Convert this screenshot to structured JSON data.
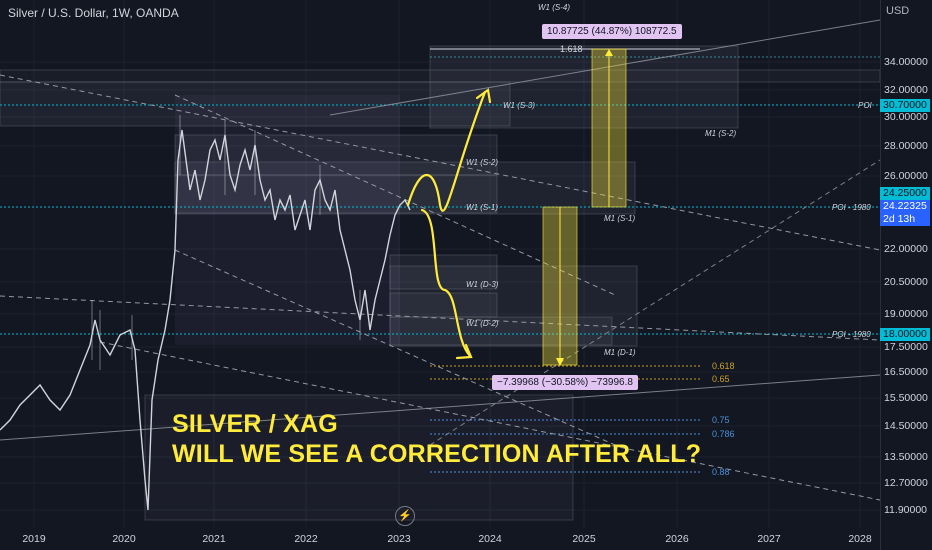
{
  "header": {
    "title": "Silver / U.S. Dollar, 1W, OANDA"
  },
  "axis": {
    "currency": "USD",
    "y_labels": [
      "34.00000",
      "32.00000",
      "30.00000",
      "28.00000",
      "26.00000",
      "22.00000",
      "20.50000",
      "19.00000",
      "17.50000",
      "16.50000",
      "15.50000",
      "14.50000",
      "13.50000",
      "12.70000",
      "11.90000"
    ],
    "x_labels": [
      "2019",
      "2020",
      "2021",
      "2022",
      "2023",
      "2024",
      "2025",
      "2026",
      "2027",
      "2028"
    ]
  },
  "price_tags": {
    "poi_upper": "30.70000",
    "poi_mid": "24.25000",
    "current": "24.22325",
    "countdown": "2d 13h",
    "poi_lower": "18.00000"
  },
  "poi_labels": {
    "upper": "POI",
    "mid": "POI - 1980",
    "lower": "POI - 1980"
  },
  "zones": {
    "w1_s4": "W1 (S-4)",
    "w1_s3": "W1 (S-3)",
    "w1_s2": "W1 (S-2)",
    "w1_s1": "W1 (S-1)",
    "m1_s2": "M1 (S-2)",
    "m1_s1": "M1 (S-1)",
    "w1_d3": "W1 (D-3)",
    "w1_d2": "W1 (D-2)",
    "m1_d1": "M1 (D-1)"
  },
  "fib": {
    "f1618": "1.618",
    "f0618": "0.618",
    "f065": "0.65",
    "f075": "0.75",
    "f0786": "0.786",
    "f088": "0.88"
  },
  "measure": {
    "up": "10.87725 (44.87%) 108772.5",
    "down": "−7.39968 (−30.58%) −73996.8"
  },
  "headline": {
    "line1": "SILVER / XAG",
    "line2": "WILL WE SEE A CORRECTION AFTER ALL?"
  },
  "colors": {
    "background": "#131722",
    "headline": "#ffeb3b",
    "arrow": "#ffeb3b",
    "poi_tag": "#00bcd4",
    "current_tag": "#2962ff",
    "measure_box": "#e1c4f2"
  },
  "icons": {
    "replay": "lightning-icon"
  }
}
